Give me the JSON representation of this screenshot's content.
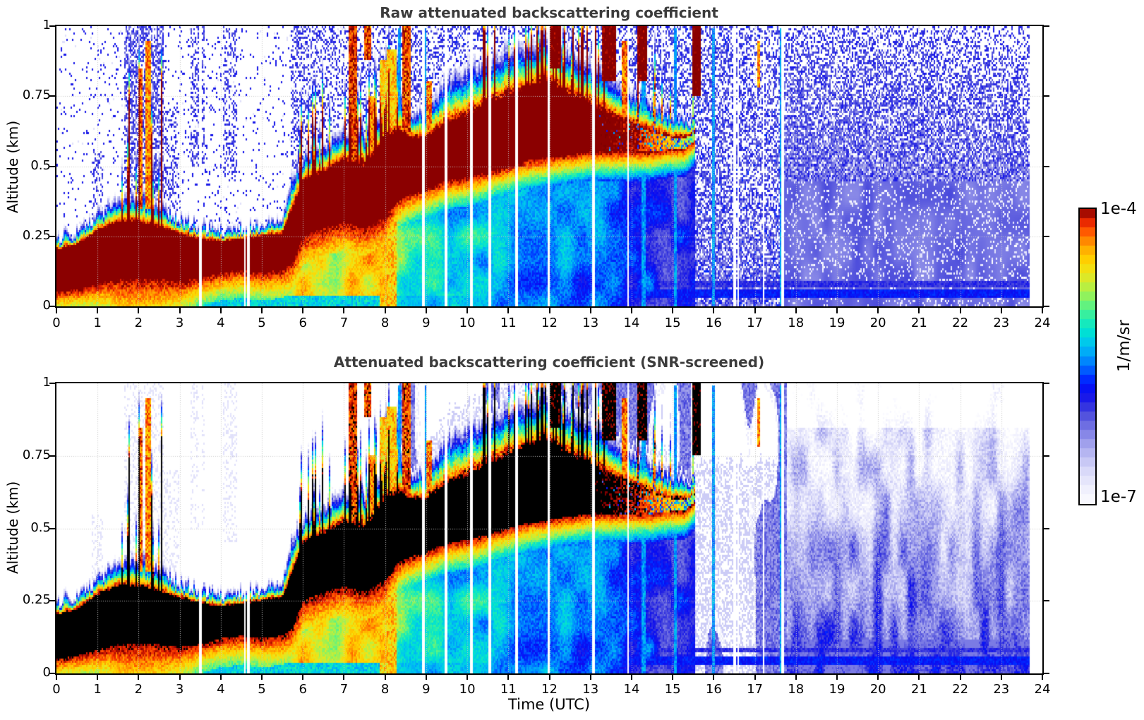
{
  "chart_data": {
    "type": "heatmap",
    "panels": [
      {
        "id": "raw",
        "title": "Raw attenuated backscattering coefficient"
      },
      {
        "id": "screened",
        "title": "Attenuated backscattering coefficient (SNR-screened)"
      }
    ],
    "x_axis": {
      "label": "Time (UTC)",
      "range": [
        0,
        24
      ],
      "ticks": [
        "0",
        "1",
        "2",
        "3",
        "4",
        "5",
        "6",
        "7",
        "8",
        "9",
        "10",
        "11",
        "12",
        "13",
        "14",
        "15",
        "16",
        "17",
        "18",
        "19",
        "20",
        "21",
        "22",
        "23",
        "24"
      ],
      "tick_values": [
        0,
        1,
        2,
        3,
        4,
        5,
        6,
        7,
        8,
        9,
        10,
        11,
        12,
        13,
        14,
        15,
        16,
        17,
        18,
        19,
        20,
        21,
        22,
        23,
        24
      ],
      "grid_values": [
        1,
        2,
        3,
        4,
        5,
        6,
        7,
        8,
        9,
        10,
        11,
        12,
        13,
        14,
        15,
        16,
        17,
        18,
        19,
        20,
        21,
        22,
        23
      ]
    },
    "y_axis": {
      "label": "Altitude (km)",
      "range": [
        0,
        1
      ],
      "ticks": [
        "0",
        "0.25",
        "0.5",
        "0.75",
        "1"
      ],
      "tick_values": [
        0,
        0.25,
        0.5,
        0.75,
        1
      ],
      "grid_values": [
        0.25,
        0.5,
        0.75
      ]
    },
    "colorbar": {
      "max_label": "1e-4",
      "min_label": "1e-7",
      "unit": "1/m/sr",
      "segments": 32,
      "log_range": [
        -7,
        -4
      ]
    },
    "colormap": {
      "stops": [
        [
          0.0,
          "#fcfcff"
        ],
        [
          0.05,
          "#efeffd"
        ],
        [
          0.1,
          "#dedefa"
        ],
        [
          0.15,
          "#c3c3f4"
        ],
        [
          0.2,
          "#a2a2ec"
        ],
        [
          0.25,
          "#7b7be4"
        ],
        [
          0.3,
          "#5050dc"
        ],
        [
          0.34,
          "#2828e2"
        ],
        [
          0.38,
          "#0a0af0"
        ],
        [
          0.42,
          "#0028ff"
        ],
        [
          0.46,
          "#0064ff"
        ],
        [
          0.5,
          "#009cfc"
        ],
        [
          0.54,
          "#00c4f0"
        ],
        [
          0.58,
          "#00e0d4"
        ],
        [
          0.62,
          "#1cecb4"
        ],
        [
          0.66,
          "#50f28c"
        ],
        [
          0.7,
          "#8cf260"
        ],
        [
          0.74,
          "#c0ee3c"
        ],
        [
          0.78,
          "#ebe51c"
        ],
        [
          0.82,
          "#ffd600"
        ],
        [
          0.86,
          "#ffb000"
        ],
        [
          0.9,
          "#ff7c00"
        ],
        [
          0.93,
          "#ff4c00"
        ],
        [
          0.96,
          "#e42000"
        ],
        [
          1.0,
          "#800000"
        ]
      ],
      "over_raw": "#8b0000",
      "over_screened": "#000000",
      "under": "#ffffff"
    },
    "model": {
      "data_end": 23.7,
      "gaps": [
        3.5,
        4.58,
        4.67,
        8.93,
        9.48,
        10.1,
        10.53,
        11.2,
        11.97,
        13.08,
        13.92,
        16.51,
        16.6,
        17.22,
        17.68
      ],
      "bl": {
        "t": [
          0,
          0.5,
          1,
          1.5,
          2,
          2.5,
          3,
          3.5,
          4,
          4.5,
          5,
          5.5,
          5.75,
          6,
          6.5,
          7,
          7.5,
          8,
          8.3,
          8.6,
          9,
          9.5,
          10,
          10.5,
          11,
          11.5,
          12,
          12.5,
          13,
          13.5,
          14,
          14.5,
          15,
          15.3,
          15.6,
          24
        ],
        "cb": [
          0.05,
          0.06,
          0.08,
          0.1,
          0.1,
          0.1,
          0.09,
          0.1,
          0.12,
          0.13,
          0.12,
          0.13,
          0.16,
          0.25,
          0.28,
          0.3,
          0.28,
          0.32,
          0.38,
          0.4,
          0.42,
          0.45,
          0.46,
          0.48,
          0.5,
          0.52,
          0.53,
          0.54,
          0.55,
          0.55,
          0.55,
          0.55,
          0.56,
          0.56,
          0.6,
          0.6
        ],
        "ct": [
          0.2,
          0.22,
          0.27,
          0.3,
          0.3,
          0.28,
          0.26,
          0.24,
          0.23,
          0.24,
          0.25,
          0.26,
          0.35,
          0.45,
          0.48,
          0.52,
          0.5,
          0.6,
          0.62,
          0.6,
          0.6,
          0.65,
          0.68,
          0.72,
          0.75,
          0.78,
          0.8,
          0.75,
          0.72,
          0.68,
          0.65,
          0.62,
          0.6,
          0.6,
          0.62,
          0.62
        ],
        "top": [
          0.26,
          0.28,
          0.34,
          0.4,
          0.42,
          0.38,
          0.33,
          0.3,
          0.28,
          0.29,
          0.3,
          0.33,
          0.5,
          0.55,
          0.6,
          0.65,
          0.63,
          0.75,
          0.8,
          0.72,
          0.72,
          0.85,
          0.88,
          0.92,
          0.95,
          0.97,
          0.98,
          0.95,
          0.9,
          0.85,
          0.8,
          0.75,
          0.7,
          0.68,
          0.68,
          0.68
        ],
        "s": [
          1,
          1,
          1,
          1,
          1,
          1,
          1,
          1,
          1,
          1,
          1,
          1,
          1,
          1,
          1,
          1,
          1,
          1,
          1,
          1,
          1,
          1,
          1,
          1,
          1,
          1,
          1,
          1,
          1,
          0.95,
          0.85,
          0.6,
          0.35,
          0.15,
          0,
          0
        ],
        "sub": [
          -5.35,
          -5.3,
          -5.0,
          -4.55,
          -4.5,
          -4.55,
          -4.8,
          -5.1,
          -5.1,
          -5.05,
          -5.0,
          -4.9,
          -4.7,
          -4.6,
          -4.6,
          -4.65,
          -4.6,
          -4.55,
          -5.0,
          -5.2,
          -5.25,
          -5.3,
          -5.3,
          -5.35,
          -5.45,
          -5.5,
          -5.55,
          -5.6,
          -5.6,
          -5.65,
          -5.7,
          -5.8,
          -5.9,
          -5.95,
          -6.0,
          -6.1
        ]
      },
      "spike_ranges": [
        [
          1.5,
          2.62,
          0.22,
          0.55
        ],
        [
          5.9,
          8.35,
          0.3,
          0.25
        ],
        [
          10.3,
          13.35,
          0.38,
          0.35
        ],
        [
          13.35,
          15.7,
          0.14,
          0.3
        ]
      ],
      "clusters": [
        [
          1.65,
          2.6,
          0.3,
          1.0,
          0.55
        ],
        [
          3.25,
          3.6,
          0.5,
          1.0,
          0.35
        ],
        [
          4.05,
          4.4,
          0.45,
          1.0,
          0.3
        ],
        [
          0.85,
          1.15,
          0.3,
          0.55,
          0.3
        ],
        [
          2.6,
          3.0,
          0.35,
          0.7,
          0.25
        ]
      ],
      "plumes": [
        [
          1.98,
          2.1,
          0.35,
          0.85,
          -4.25
        ],
        [
          2.16,
          2.3,
          0.35,
          0.95,
          -4.35
        ],
        [
          7.12,
          7.3,
          0.45,
          1.0,
          -4.15
        ],
        [
          7.5,
          7.65,
          0.88,
          1.0,
          -4.2
        ],
        [
          7.62,
          7.72,
          0.3,
          0.75,
          -4.3
        ],
        [
          7.85,
          8.02,
          0.0,
          0.88,
          -4.55
        ],
        [
          8.02,
          8.28,
          0.0,
          0.92,
          -4.5
        ],
        [
          8.4,
          8.62,
          0.55,
          1.0,
          -4.2
        ],
        [
          9.0,
          9.12,
          0.4,
          0.8,
          -4.3
        ],
        [
          12.0,
          12.3,
          0.85,
          1.0,
          -3.85
        ],
        [
          13.3,
          13.62,
          0.8,
          1.0,
          -3.85
        ],
        [
          13.78,
          13.95,
          0.6,
          0.95,
          -4.3
        ],
        [
          14.15,
          14.4,
          0.8,
          1.0,
          -3.85
        ],
        [
          15.5,
          15.68,
          0.75,
          1.0,
          -3.8
        ],
        [
          17.08,
          17.14,
          0.78,
          0.95,
          -4.35
        ]
      ],
      "streaks": [
        [
          8.35,
          0.05
        ],
        [
          8.98,
          0.05
        ],
        [
          14.3,
          0.1
        ],
        [
          15.06,
          0.07
        ],
        [
          16.0,
          0.04
        ],
        [
          17.64,
          0.08
        ]
      ],
      "scr_th": {
        "t": [
          8.35,
          10,
          12,
          15,
          16.5,
          17.1,
          17.45,
          17.8
        ],
        "v": [
          0.47,
          0.5,
          0.53,
          0.56,
          0.62,
          0.5,
          0.28,
          0.22
        ]
      },
      "h_lines": [
        {
          "t0": 8.4,
          "z0": 0.032,
          "z1": 0.062,
          "v": -5.8
        },
        {
          "t0": 8.4,
          "z0": 0.07,
          "z1": 0.088,
          "v": -6.0
        }
      ]
    }
  }
}
